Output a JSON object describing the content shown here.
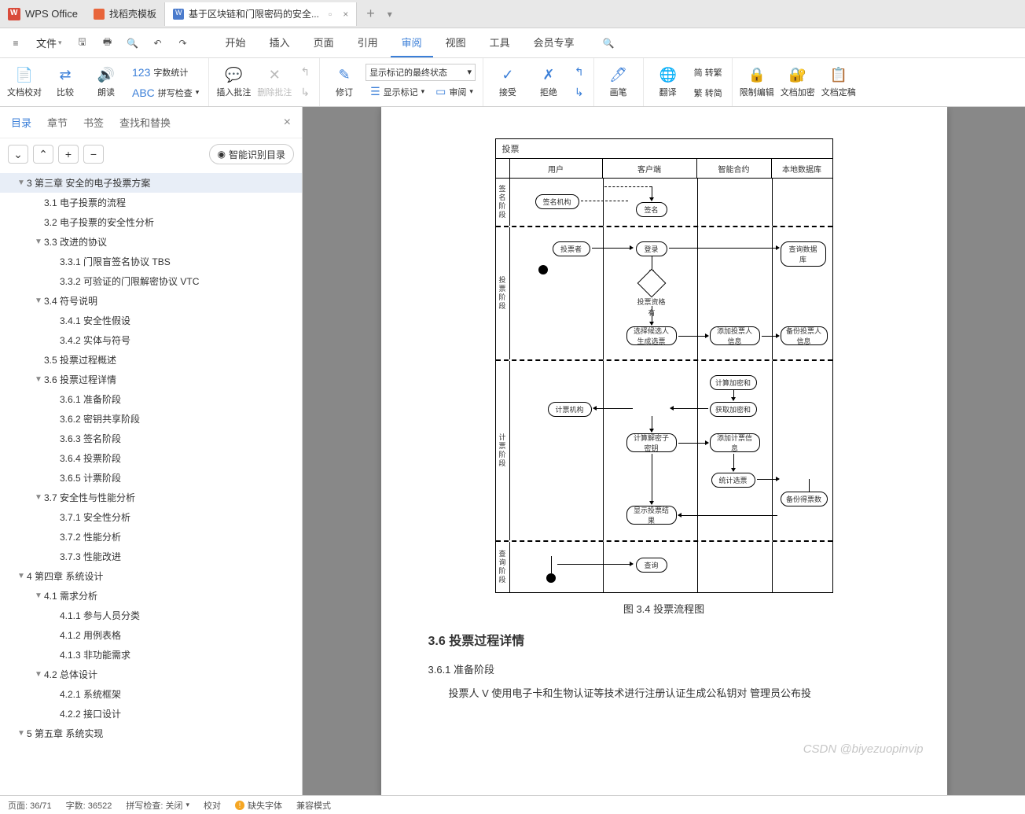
{
  "app_name": "WPS Office",
  "tabs": [
    {
      "icon": "orange",
      "label": "找稻壳模板"
    },
    {
      "icon": "blue",
      "label": "基于区块链和门限密码的安全..."
    }
  ],
  "file_menu": "文件",
  "menus": [
    "开始",
    "插入",
    "页面",
    "引用",
    "审阅",
    "视图",
    "工具",
    "会员专享"
  ],
  "active_menu": 4,
  "ribbon": {
    "g1": {
      "docCheck": "文档校对",
      "compare": "比较",
      "read": "朗读",
      "wordCount": "字数统计",
      "spellCheck": "拼写检查"
    },
    "g2": {
      "insert": "插入批注",
      "delete": "删除批注"
    },
    "g3": {
      "revise": "修订",
      "dropdown": "显示标记的最终状态",
      "showMark": "显示标记",
      "reviewPane": "审阅"
    },
    "g4": {
      "accept": "接受",
      "reject": "拒绝"
    },
    "g5": {
      "pen": "画笔"
    },
    "g6": {
      "translate": "翻译",
      "simpTrad1": "简 转繁",
      "simpTrad2": "繁 转简"
    },
    "g7": {
      "restrict": "限制编辑",
      "encrypt": "文档加密",
      "finalize": "文档定稿"
    }
  },
  "sidebar": {
    "tabs": [
      "目录",
      "章节",
      "书签",
      "查找和替换"
    ],
    "active": 0,
    "smart": "智能识别目录",
    "outline": [
      {
        "lvl": 1,
        "tog": "▼",
        "txt": "3  第三章   安全的电子投票方案",
        "active": true
      },
      {
        "lvl": 2,
        "tog": "",
        "txt": "3.1  电子投票的流程"
      },
      {
        "lvl": 2,
        "tog": "",
        "txt": "3.2  电子投票的安全性分析"
      },
      {
        "lvl": 2,
        "tog": "▼",
        "txt": "3.3  改进的协议"
      },
      {
        "lvl": 3,
        "tog": "",
        "txt": "3.3.1  门限盲签名协议 TBS"
      },
      {
        "lvl": 3,
        "tog": "",
        "txt": "3.3.2  可验证的门限解密协议 VTC"
      },
      {
        "lvl": 2,
        "tog": "▼",
        "txt": "3.4  符号说明"
      },
      {
        "lvl": 3,
        "tog": "",
        "txt": "3.4.1  安全性假设"
      },
      {
        "lvl": 3,
        "tog": "",
        "txt": "3.4.2  实体与符号"
      },
      {
        "lvl": 2,
        "tog": "",
        "txt": "3.5  投票过程概述"
      },
      {
        "lvl": 2,
        "tog": "▼",
        "txt": "3.6  投票过程详情"
      },
      {
        "lvl": 3,
        "tog": "",
        "txt": "3.6.1  准备阶段"
      },
      {
        "lvl": 3,
        "tog": "",
        "txt": "3.6.2  密钥共享阶段"
      },
      {
        "lvl": 3,
        "tog": "",
        "txt": "3.6.3  签名阶段"
      },
      {
        "lvl": 3,
        "tog": "",
        "txt": "3.6.4  投票阶段"
      },
      {
        "lvl": 3,
        "tog": "",
        "txt": "3.6.5  计票阶段"
      },
      {
        "lvl": 2,
        "tog": "▼",
        "txt": "3.7  安全性与性能分析"
      },
      {
        "lvl": 3,
        "tog": "",
        "txt": "3.7.1  安全性分析"
      },
      {
        "lvl": 3,
        "tog": "",
        "txt": "3.7.2  性能分析"
      },
      {
        "lvl": 3,
        "tog": "",
        "txt": "3.7.3  性能改进"
      },
      {
        "lvl": 1,
        "tog": "▼",
        "txt": "4  第四章   系统设计"
      },
      {
        "lvl": 2,
        "tog": "▼",
        "txt": "4.1  需求分析"
      },
      {
        "lvl": 3,
        "tog": "",
        "txt": "4.1.1  参与人员分类"
      },
      {
        "lvl": 3,
        "tog": "",
        "txt": "4.1.2  用例表格"
      },
      {
        "lvl": 3,
        "tog": "",
        "txt": "4.1.3  非功能需求"
      },
      {
        "lvl": 2,
        "tog": "▼",
        "txt": "4.2  总体设计"
      },
      {
        "lvl": 3,
        "tog": "",
        "txt": "4.2.1  系统框架"
      },
      {
        "lvl": 3,
        "tog": "",
        "txt": "4.2.2  接口设计"
      },
      {
        "lvl": 1,
        "tog": "▼",
        "txt": "5  第五章   系统实现"
      }
    ]
  },
  "flowchart": {
    "title": "投票",
    "cols": [
      "用户",
      "客户端",
      "智能合约",
      "本地数据库"
    ],
    "phases": [
      "签名阶段",
      "投票阶段",
      "",
      "计票阶段",
      "查询阶段"
    ],
    "nodes": {
      "sign_org": "签名机构",
      "sign": "签名",
      "voter": "投票者",
      "login": "登录",
      "query_db": "查询数据库",
      "vote_qual": "投票资格",
      "yes": "有",
      "select_gen": "选择候选人\n生成选票",
      "add_voter": "添加投票人\n信息",
      "backup_voter": "备份投票人\n信息",
      "count_org": "计票机构",
      "calc_sum": "计算加密和",
      "get_sum": "获取加密和",
      "calc_key": "计算解密子\n密钥",
      "add_cnt": "添加计票信\n息",
      "stat": "统计选票",
      "backup_cnt": "备份得票数",
      "show_res": "显示投票结\n果",
      "query": "查询"
    }
  },
  "caption": "图 3.4 投票流程图",
  "h2": "3.6  投票过程详情",
  "h3": "3.6.1  准备阶段",
  "body": "投票人 V 使用电子卡和生物认证等技术进行注册认证生成公私钥对 管理员公布投",
  "watermark": "CSDN @biyezuopinvip",
  "status": {
    "page": "页面: 36/71",
    "words": "字数: 36522",
    "spell": "拼写检查: 关闭",
    "proof": "校对",
    "missing": "缺失字体",
    "compat": "兼容模式"
  }
}
